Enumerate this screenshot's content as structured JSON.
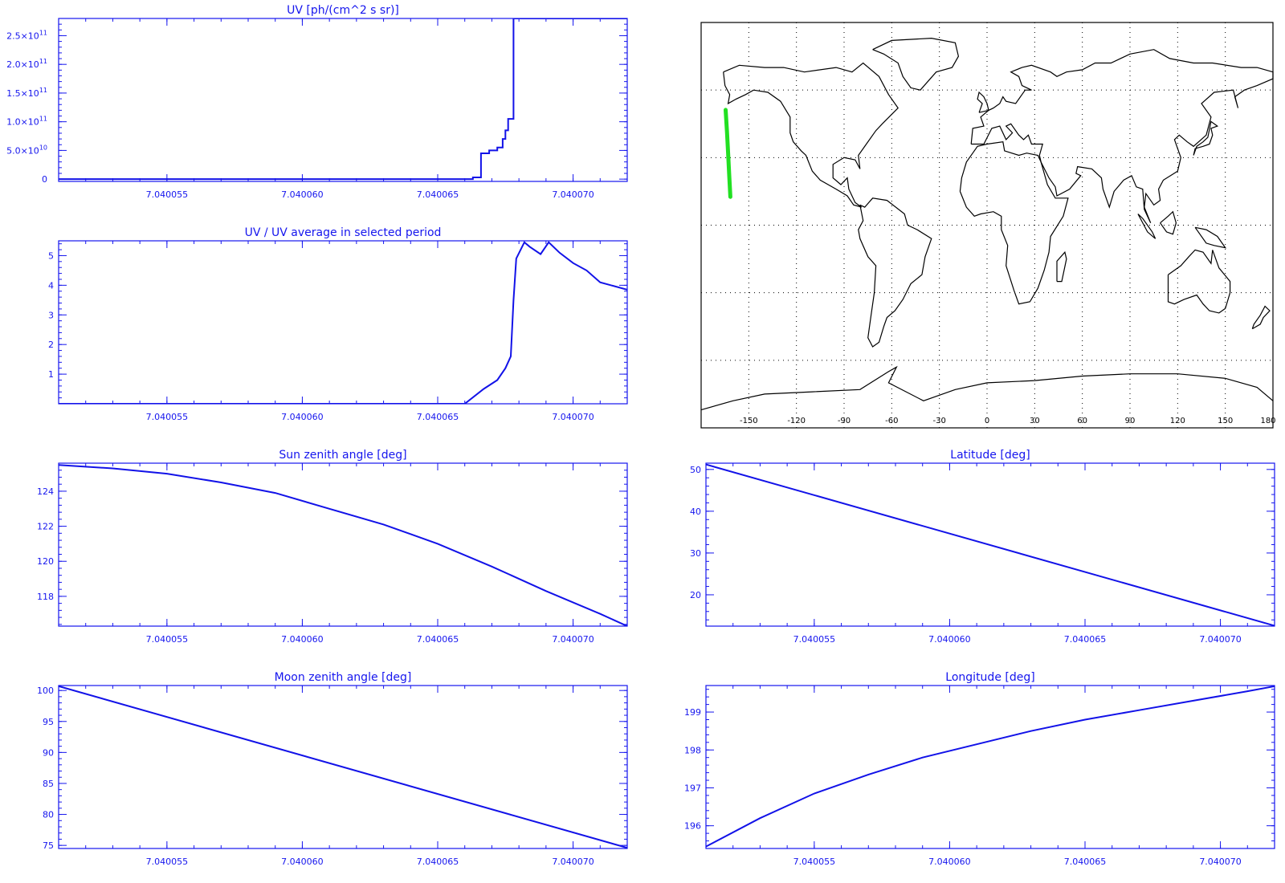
{
  "colors": {
    "axis": "#1515ee",
    "line": "#1212e8",
    "track": "#22e022",
    "coast": "#000000"
  },
  "chart_data": [
    {
      "id": "uv",
      "type": "line",
      "title": "UV [ph/(cm^2 s sr)]",
      "xlim": [
        7.040051,
        7.040072
      ],
      "ylim": [
        -4000000000.0,
        280000000000.0
      ],
      "xticks": [
        7.040055,
        7.04006,
        7.040065,
        7.04007
      ],
      "xtick_labels": [
        "7.040055",
        "7.040060",
        "7.040065",
        "7.040070"
      ],
      "yticks": [
        0,
        50000000000.0,
        100000000000.0,
        150000000000.0,
        200000000000.0,
        250000000000.0
      ],
      "ytick_mantissas": [
        "0",
        "5.0×10",
        "1.0×10",
        "1.5×10",
        "2.0×10",
        "2.5×10"
      ],
      "ytick_exponents": [
        "",
        "10",
        "11",
        "11",
        "11",
        "11"
      ],
      "step": true,
      "series": [
        {
          "x": [
            7.040051,
            7.0400663,
            7.0400666,
            7.0400669,
            7.0400672,
            7.0400674,
            7.0400675,
            7.0400676,
            7.0400678,
            7.040072
          ],
          "y": [
            0,
            3000000000.0,
            45000000000.0,
            50000000000.0,
            55000000000.0,
            70000000000.0,
            85000000000.0,
            105000000000.0,
            280000000000.0,
            280000000000.0
          ]
        }
      ]
    },
    {
      "id": "uv-ratio",
      "type": "line",
      "title": "UV / UV average in selected period",
      "xlim": [
        7.040051,
        7.040072
      ],
      "ylim": [
        0,
        5.5
      ],
      "xticks": [
        7.040055,
        7.04006,
        7.040065,
        7.04007
      ],
      "xtick_labels": [
        "7.040055",
        "7.040060",
        "7.040065",
        "7.040070"
      ],
      "yticks": [
        1,
        2,
        3,
        4,
        5
      ],
      "ytick_labels": [
        "1",
        "2",
        "3",
        "4",
        "5"
      ],
      "series": [
        {
          "x": [
            7.040051,
            7.040066,
            7.0400667,
            7.0400672,
            7.0400675,
            7.0400677,
            7.0400678,
            7.0400679,
            7.0400682,
            7.0400684,
            7.0400688,
            7.0400691,
            7.0400695,
            7.04007,
            7.0400705,
            7.040071,
            7.040072
          ],
          "y": [
            0,
            0,
            0.5,
            0.8,
            1.2,
            1.6,
            3.5,
            4.9,
            5.45,
            5.3,
            5.05,
            5.45,
            5.1,
            4.75,
            4.5,
            4.1,
            3.85
          ]
        }
      ]
    },
    {
      "id": "sun-zenith",
      "type": "line",
      "title": "Sun zenith angle [deg]",
      "xlim": [
        7.040051,
        7.040072
      ],
      "ylim": [
        116.3,
        125.6
      ],
      "xticks": [
        7.040055,
        7.04006,
        7.040065,
        7.04007
      ],
      "xtick_labels": [
        "7.040055",
        "7.040060",
        "7.040065",
        "7.040070"
      ],
      "yticks": [
        118,
        120,
        122,
        124
      ],
      "ytick_labels": [
        "118",
        "120",
        "122",
        "124"
      ],
      "series": [
        {
          "x": [
            7.040051,
            7.040053,
            7.040055,
            7.040057,
            7.040059,
            7.040061,
            7.040063,
            7.040065,
            7.040067,
            7.040069,
            7.040071,
            7.040072
          ],
          "y": [
            125.5,
            125.3,
            125.0,
            124.5,
            123.9,
            123.0,
            122.1,
            121.0,
            119.7,
            118.3,
            117.0,
            116.3
          ]
        }
      ]
    },
    {
      "id": "moon-zenith",
      "type": "line",
      "title": "Moon zenith angle [deg]",
      "xlim": [
        7.040051,
        7.040072
      ],
      "ylim": [
        74.5,
        100.8
      ],
      "xticks": [
        7.040055,
        7.04006,
        7.040065,
        7.04007
      ],
      "xtick_labels": [
        "7.040055",
        "7.040060",
        "7.040065",
        "7.040070"
      ],
      "yticks": [
        75,
        80,
        85,
        90,
        95,
        100
      ],
      "ytick_labels": [
        "75",
        "80",
        "85",
        "90",
        "95",
        "100"
      ],
      "series": [
        {
          "x": [
            7.040051,
            7.040072
          ],
          "y": [
            100.7,
            74.6
          ]
        }
      ]
    },
    {
      "id": "latitude",
      "type": "line",
      "title": "Latitude [deg]",
      "xlim": [
        7.040051,
        7.040072
      ],
      "ylim": [
        12.5,
        51.5
      ],
      "xticks": [
        7.040055,
        7.04006,
        7.040065,
        7.04007
      ],
      "xtick_labels": [
        "7.040055",
        "7.040060",
        "7.040065",
        "7.040070"
      ],
      "yticks": [
        20,
        30,
        40,
        50
      ],
      "ytick_labels": [
        "20",
        "30",
        "40",
        "50"
      ],
      "series": [
        {
          "x": [
            7.040051,
            7.040072
          ],
          "y": [
            51.2,
            12.6
          ]
        }
      ]
    },
    {
      "id": "longitude",
      "type": "line",
      "title": "Longitude [deg]",
      "xlim": [
        7.040051,
        7.040072
      ],
      "ylim": [
        195.4,
        199.7
      ],
      "xticks": [
        7.040055,
        7.04006,
        7.040065,
        7.04007
      ],
      "xtick_labels": [
        "7.040055",
        "7.040060",
        "7.040065",
        "7.040070"
      ],
      "yticks": [
        196,
        197,
        198,
        199
      ],
      "ytick_labels": [
        "196",
        "197",
        "198",
        "199"
      ],
      "series": [
        {
          "x": [
            7.040051,
            7.040053,
            7.040055,
            7.040057,
            7.040059,
            7.040061,
            7.040063,
            7.040065,
            7.040067,
            7.040069,
            7.040071,
            7.040072
          ],
          "y": [
            195.45,
            196.2,
            196.85,
            197.35,
            197.8,
            198.15,
            198.5,
            198.8,
            199.05,
            199.3,
            199.55,
            199.68
          ]
        }
      ]
    }
  ],
  "map": {
    "type": "map",
    "lon_range": [
      -180,
      180
    ],
    "lat_range": [
      -90,
      90
    ],
    "lon_ticks": [
      -150,
      -120,
      -90,
      -60,
      -30,
      0,
      30,
      60,
      90,
      120,
      150,
      180
    ],
    "lon_tick_labels": [
      "-150",
      "-120",
      "-90",
      "-60",
      "-30",
      "0",
      "30",
      "60",
      "90",
      "120",
      "150",
      "180"
    ],
    "grid_lats": [
      -60,
      -30,
      0,
      30,
      60
    ],
    "track": {
      "lon": [
        -164.6,
        -163.7,
        -163.0,
        -162.3,
        -161.6
      ],
      "lat": [
        51.2,
        41.5,
        32.0,
        22.0,
        12.6
      ]
    }
  }
}
